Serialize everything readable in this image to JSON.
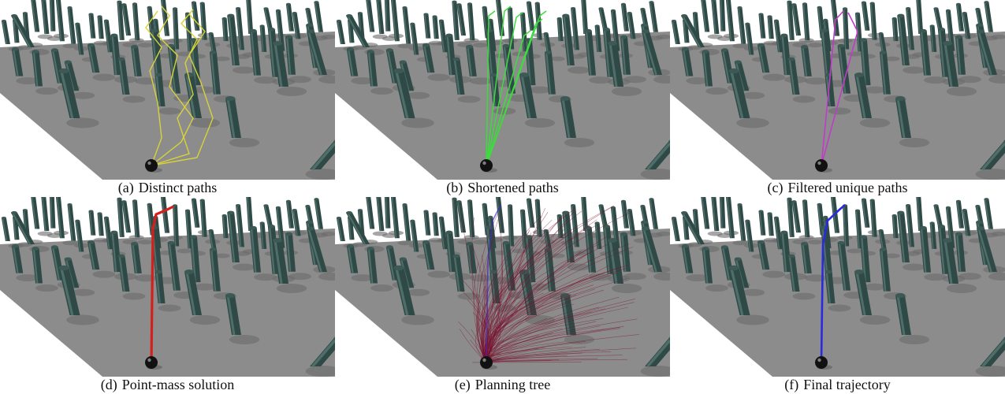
{
  "figure": {
    "panels": [
      {
        "id": "a",
        "tag": "(a)",
        "caption": "Distinct paths",
        "path_color": "#d8d23a",
        "path_style": "multi-jagged"
      },
      {
        "id": "b",
        "tag": "(b)",
        "caption": "Shortened paths",
        "path_color": "#3ddc3d",
        "path_style": "multi-straight"
      },
      {
        "id": "c",
        "tag": "(c)",
        "caption": "Filtered unique paths",
        "path_color": "#c03cc8",
        "path_style": "two-straight"
      },
      {
        "id": "d",
        "tag": "(d)",
        "caption": "Point-mass solution",
        "path_color": "#d4201c",
        "path_style": "single-thick"
      },
      {
        "id": "e",
        "tag": "(e)",
        "caption": "Planning tree",
        "path_color": "#7a1230",
        "path_style": "tree"
      },
      {
        "id": "f",
        "tag": "(f)",
        "caption": "Final trajectory",
        "path_color": "#2a2ae0",
        "path_style": "single-blue"
      }
    ],
    "colors": {
      "ground": "#8c8c8c",
      "pillar": "#2f4a46",
      "pillar_light": "#4f6e69",
      "pillar_top": "#3d5955",
      "robot": "#111111"
    }
  }
}
